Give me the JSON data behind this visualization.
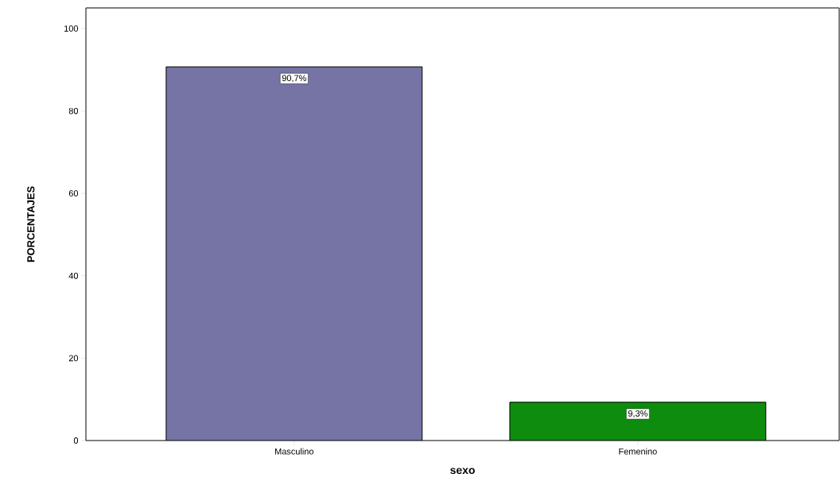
{
  "chart_data": {
    "type": "bar",
    "xlabel": "sexo",
    "ylabel": "PORCENTAJES",
    "categories": [
      "Masculino",
      "Femenino"
    ],
    "values": [
      90.7,
      9.3
    ],
    "colors": [
      "#7574a5",
      "#0e8c0e"
    ],
    "value_labels": [
      "90,7%",
      "9,3%"
    ],
    "ylim": [
      0,
      105
    ],
    "yticks": [
      0,
      20,
      40,
      60,
      80,
      100
    ],
    "grid": false
  }
}
